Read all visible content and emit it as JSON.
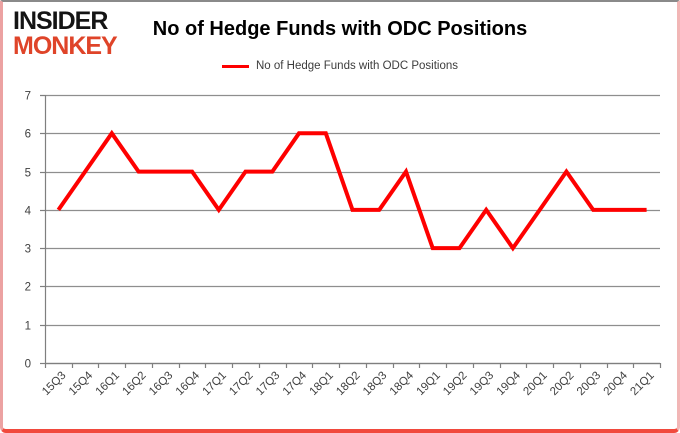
{
  "logo": {
    "line1": "INSIDER",
    "line2": "MONKEY",
    "black": "#141414",
    "red": "#df4429"
  },
  "legend": {
    "label": "No of Hedge Funds with ODC Positions"
  },
  "colors": {
    "line": "#fe0000",
    "gridline": "#8e8e8e",
    "axis": "#7f7f7f",
    "tick_label": "#404040"
  },
  "chart_data": {
    "type": "line",
    "title": "No of Hedge Funds with ODC Positions",
    "categories": [
      "15Q3",
      "15Q4",
      "16Q1",
      "16Q2",
      "16Q3",
      "16Q4",
      "17Q1",
      "17Q2",
      "17Q3",
      "17Q4",
      "18Q1",
      "18Q2",
      "18Q3",
      "18Q4",
      "19Q1",
      "19Q2",
      "19Q3",
      "19Q4",
      "20Q1",
      "20Q2",
      "20Q3",
      "20Q4",
      "21Q1"
    ],
    "series": [
      {
        "name": "No of Hedge Funds with ODC Positions",
        "color": "#fe0000",
        "values": [
          4,
          5,
          6,
          5,
          5,
          5,
          4,
          5,
          5,
          6,
          6,
          4,
          4,
          5,
          3,
          3,
          4,
          3,
          4,
          5,
          4,
          4,
          4
        ]
      }
    ],
    "xlabel": "",
    "ylabel": "",
    "ylim": [
      0,
      7
    ],
    "yticks": [
      0,
      1,
      2,
      3,
      4,
      5,
      6,
      7
    ],
    "grid": true,
    "legend_position": "top-center"
  }
}
